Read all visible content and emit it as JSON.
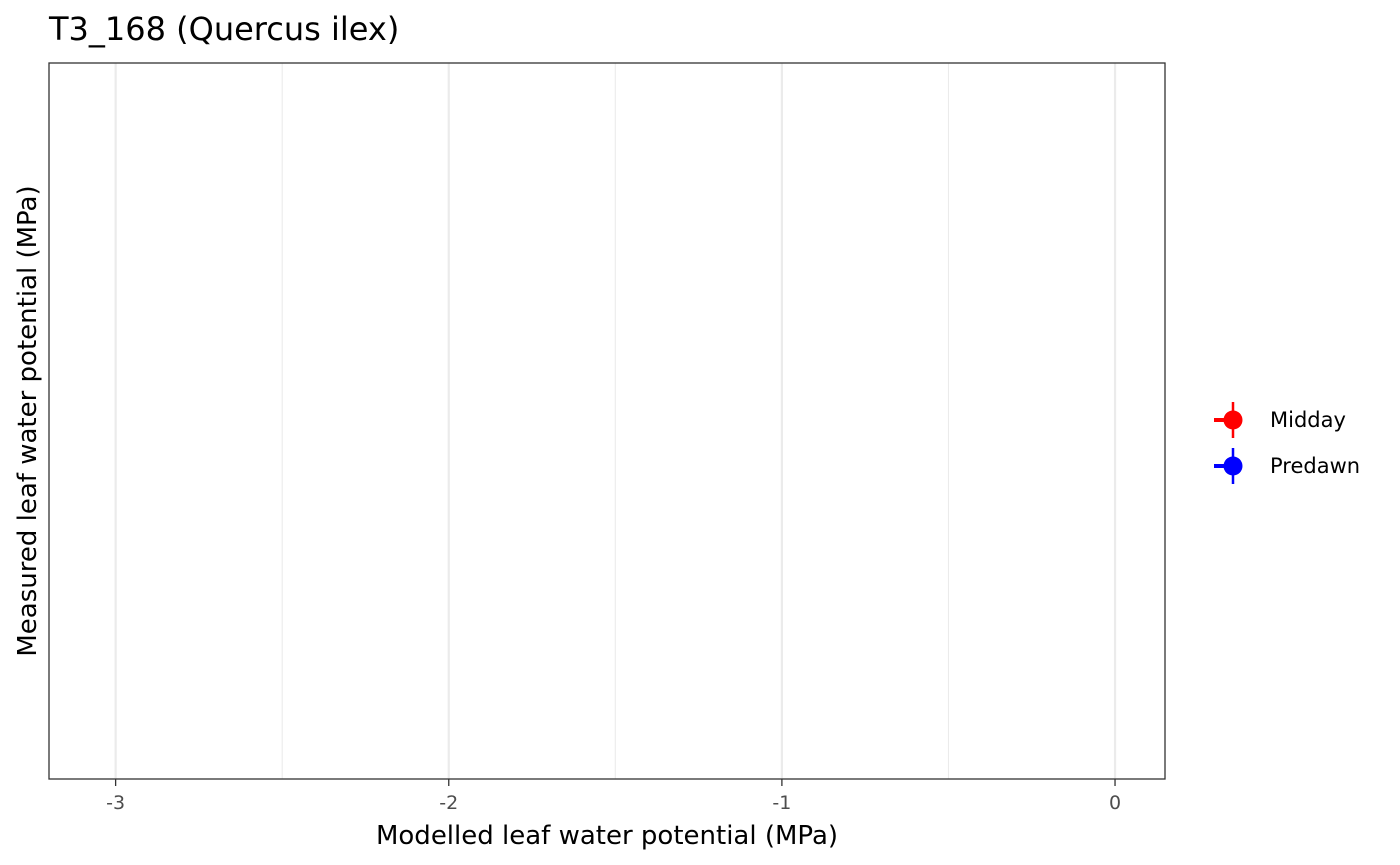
{
  "chart_data": {
    "type": "scatter",
    "title": "T3_168 (Quercus ilex)",
    "xlabel": "Modelled leaf water potential (MPa)",
    "ylabel": "Measured leaf water potential (MPa)",
    "xlim": [
      -3.2,
      0.15
    ],
    "x_ticks": [
      -3,
      -2,
      -1,
      0
    ],
    "x_tick_labels": [
      "-3",
      "-2",
      "-1",
      "0"
    ],
    "x_minor_ticks": [
      -2.5,
      -1.5,
      -0.5
    ],
    "grid": true,
    "legend": "right",
    "series": [
      {
        "name": "Midday",
        "color": "#ff0000",
        "x": [],
        "y": []
      },
      {
        "name": "Predawn",
        "color": "#0000ff",
        "x": [],
        "y": []
      }
    ]
  },
  "colors": {
    "panel_border": "#333333",
    "grid": "#ebebeb",
    "tick_text": "#4d4d4d"
  }
}
